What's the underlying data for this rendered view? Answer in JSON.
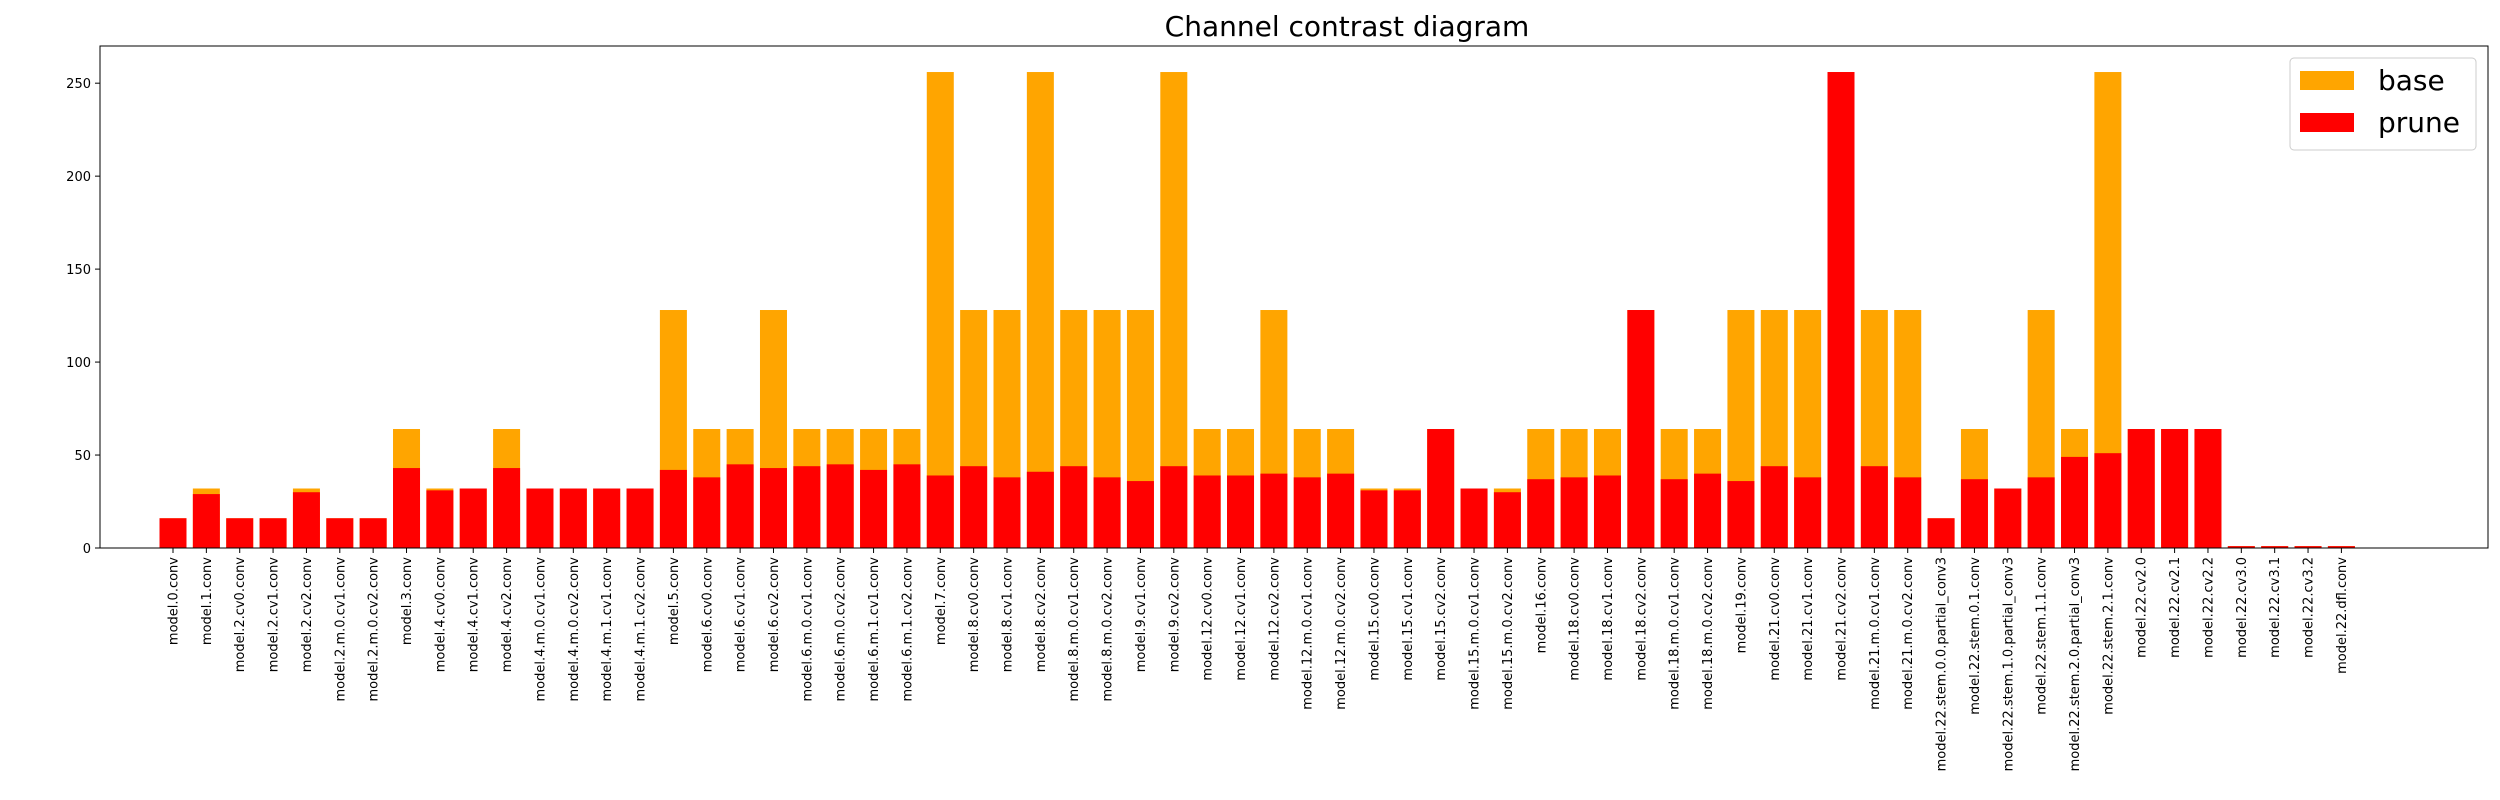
{
  "chart_data": {
    "type": "bar",
    "title": "Channel contrast diagram",
    "xlabel": "",
    "ylabel": "",
    "ylim": [
      0,
      270
    ],
    "yticks": [
      0,
      50,
      100,
      150,
      200,
      250
    ],
    "legend_position": "top-right",
    "grid": false,
    "categories": [
      "model.0.conv",
      "model.1.conv",
      "model.2.cv0.conv",
      "model.2.cv1.conv",
      "model.2.cv2.conv",
      "model.2.m.0.cv1.conv",
      "model.2.m.0.cv2.conv",
      "model.3.conv",
      "model.4.cv0.conv",
      "model.4.cv1.conv",
      "model.4.cv2.conv",
      "model.4.m.0.cv1.conv",
      "model.4.m.0.cv2.conv",
      "model.4.m.1.cv1.conv",
      "model.4.m.1.cv2.conv",
      "model.5.conv",
      "model.6.cv0.conv",
      "model.6.cv1.conv",
      "model.6.cv2.conv",
      "model.6.m.0.cv1.conv",
      "model.6.m.0.cv2.conv",
      "model.6.m.1.cv1.conv",
      "model.6.m.1.cv2.conv",
      "model.7.conv",
      "model.8.cv0.conv",
      "model.8.cv1.conv",
      "model.8.cv2.conv",
      "model.8.m.0.cv1.conv",
      "model.8.m.0.cv2.conv",
      "model.9.cv1.conv",
      "model.9.cv2.conv",
      "model.12.cv0.conv",
      "model.12.cv1.conv",
      "model.12.cv2.conv",
      "model.12.m.0.cv1.conv",
      "model.12.m.0.cv2.conv",
      "model.15.cv0.conv",
      "model.15.cv1.conv",
      "model.15.cv2.conv",
      "model.15.m.0.cv1.conv",
      "model.15.m.0.cv2.conv",
      "model.16.conv",
      "model.18.cv0.conv",
      "model.18.cv1.conv",
      "model.18.cv2.conv",
      "model.18.m.0.cv1.conv",
      "model.18.m.0.cv2.conv",
      "model.19.conv",
      "model.21.cv0.conv",
      "model.21.cv1.conv",
      "model.21.cv2.conv",
      "model.21.m.0.cv1.conv",
      "model.21.m.0.cv2.conv",
      "model.22.stem.0.0.partial_conv3",
      "model.22.stem.0.1.conv",
      "model.22.stem.1.0.partial_conv3",
      "model.22.stem.1.1.conv",
      "model.22.stem.2.0.partial_conv3",
      "model.22.stem.2.1.conv",
      "model.22.cv2.0",
      "model.22.cv2.1",
      "model.22.cv2.2",
      "model.22.cv3.0",
      "model.22.cv3.1",
      "model.22.cv3.2",
      "model.22.dfl.conv"
    ],
    "series": [
      {
        "name": "base",
        "color": "#FFA500",
        "values": [
          16,
          32,
          16,
          16,
          32,
          16,
          16,
          64,
          32,
          32,
          64,
          32,
          32,
          32,
          32,
          128,
          64,
          64,
          128,
          64,
          64,
          64,
          64,
          256,
          128,
          128,
          256,
          128,
          128,
          128,
          256,
          64,
          64,
          128,
          64,
          64,
          32,
          32,
          64,
          32,
          32,
          64,
          64,
          64,
          128,
          64,
          64,
          128,
          128,
          128,
          256,
          128,
          128,
          16,
          64,
          32,
          128,
          64,
          256,
          64,
          64,
          64,
          1,
          1,
          1,
          1
        ]
      },
      {
        "name": "prune",
        "color": "#FF0000",
        "values": [
          16,
          29,
          16,
          16,
          30,
          16,
          16,
          43,
          31,
          32,
          43,
          32,
          32,
          32,
          32,
          42,
          38,
          45,
          43,
          44,
          45,
          42,
          45,
          39,
          44,
          38,
          41,
          44,
          38,
          36,
          44,
          39,
          39,
          40,
          38,
          40,
          31,
          31,
          64,
          32,
          30,
          37,
          38,
          39,
          128,
          37,
          40,
          36,
          44,
          38,
          256,
          44,
          38,
          16,
          37,
          32,
          38,
          49,
          51,
          64,
          64,
          64,
          1,
          1,
          1,
          1
        ]
      }
    ]
  }
}
